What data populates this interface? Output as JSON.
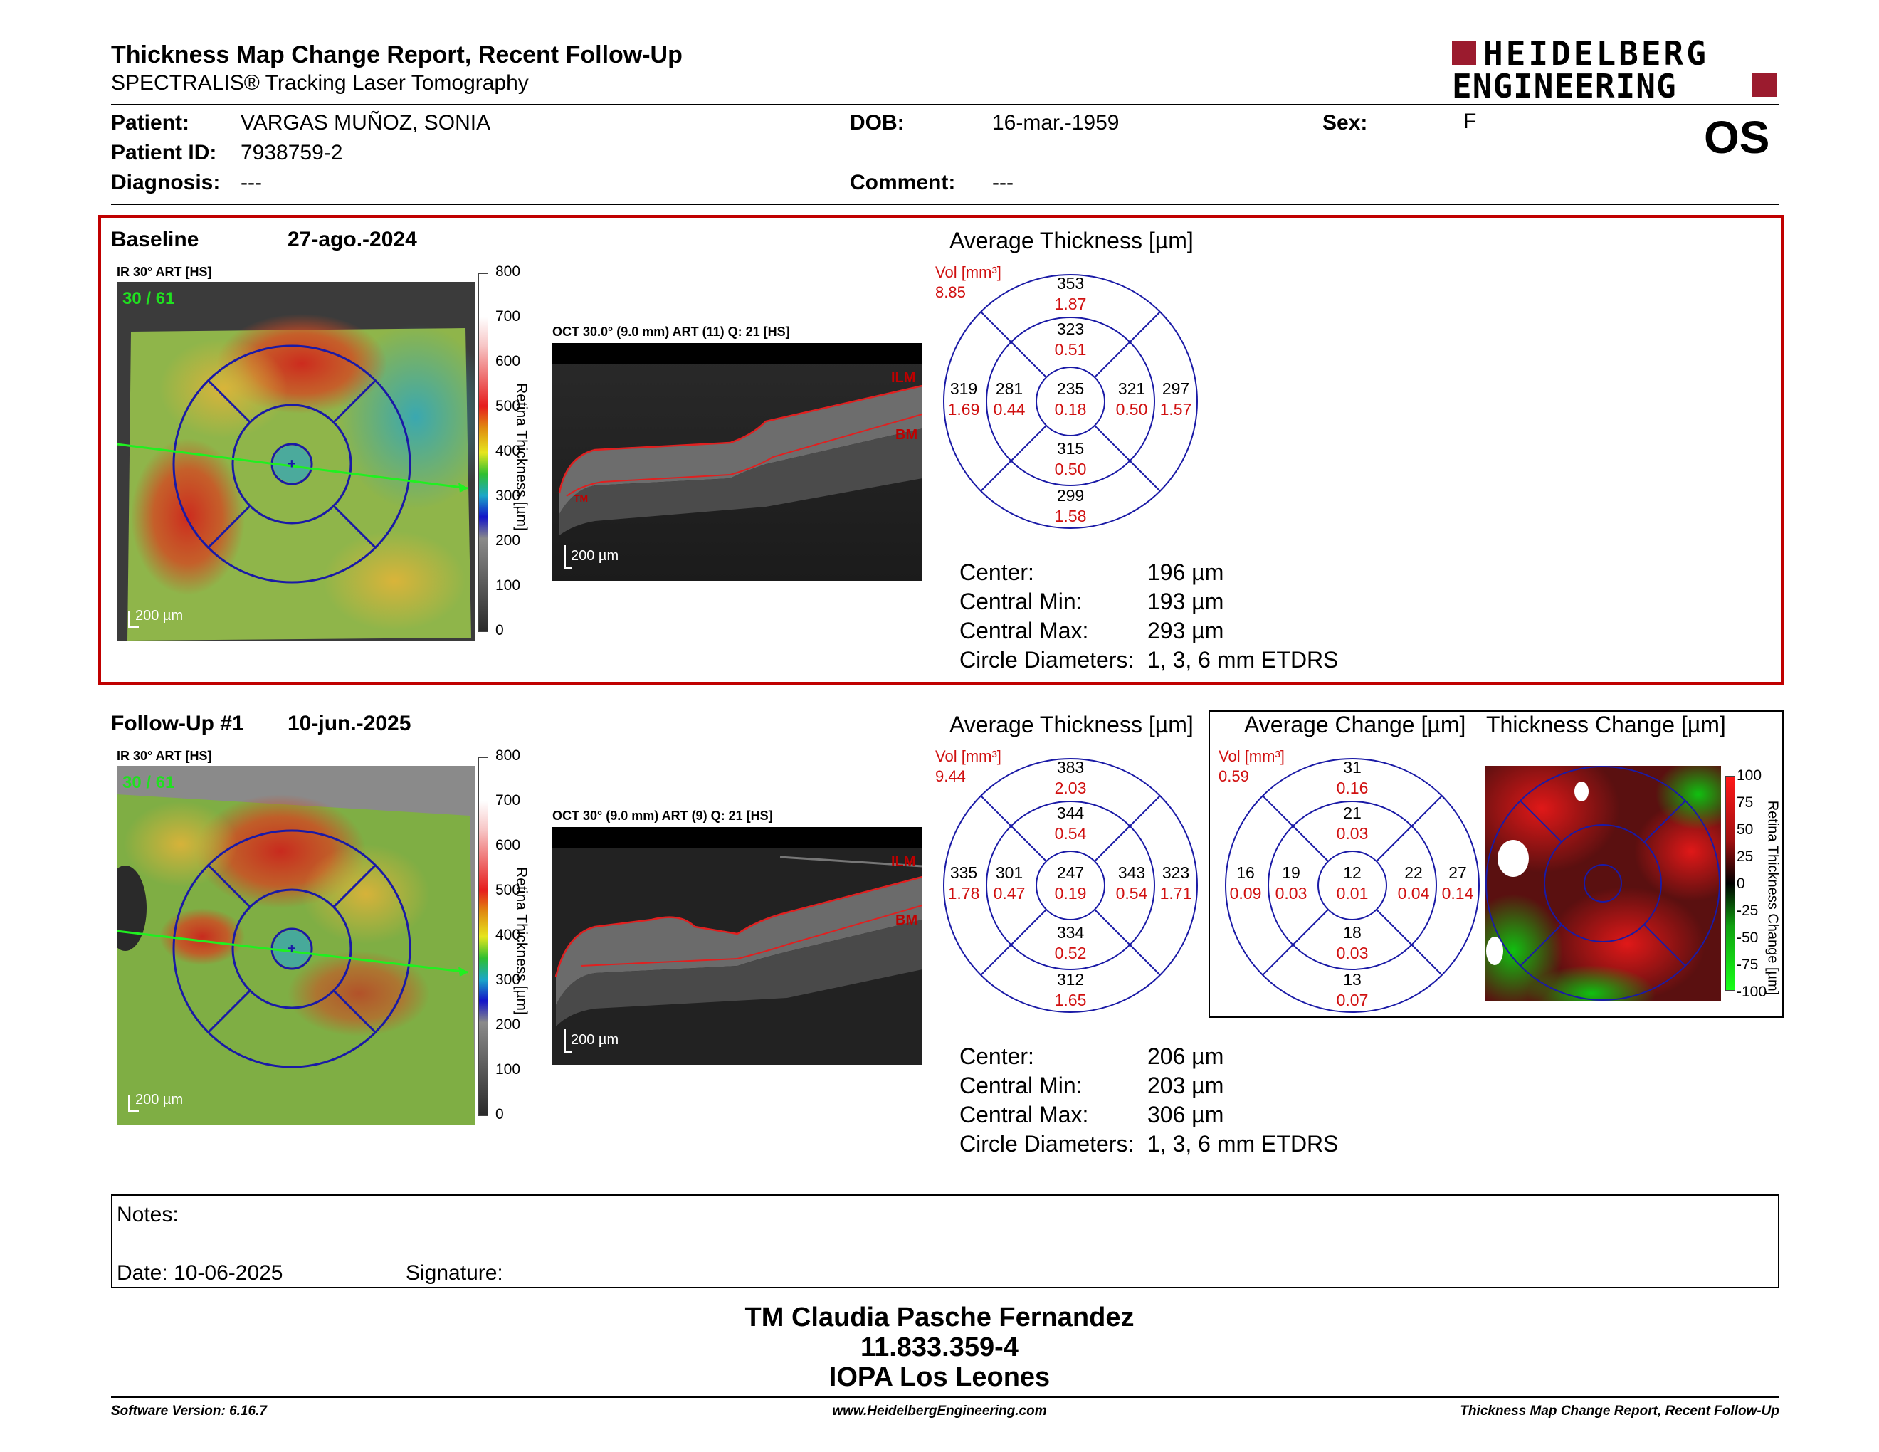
{
  "header": {
    "title": "Thickness Map Change Report, Recent Follow-Up",
    "subtitle": "SPECTRALIS® Tracking Laser Tomography",
    "logo_line1": "HEIDELBERG",
    "logo_line2": "ENGINEERING",
    "eye": "OS"
  },
  "patient": {
    "name_label": "Patient:",
    "name": "VARGAS MUÑOZ, SONIA",
    "id_label": "Patient ID:",
    "id": "7938759-2",
    "diagnosis_label": "Diagnosis:",
    "diagnosis": "---",
    "dob_label": "DOB:",
    "dob": "16-mar.-1959",
    "comment_label": "Comment:",
    "comment": "---",
    "sex_label": "Sex:",
    "sex": "F"
  },
  "baseline": {
    "label": "Baseline",
    "date": "27-ago.-2024",
    "ir_label": "IR 30° ART [HS]",
    "ir_counter": "30 / 61",
    "scale": "200 µm",
    "oct_label": "OCT 30.0° (9.0 mm) ART (11) Q: 21 [HS]",
    "oct_scale": "200 µm",
    "ilm": "ILM",
    "bm": "BM",
    "tm": "TM",
    "colorbar_title": "Retina Thickness [µm]",
    "colorbar_ticks": [
      "800",
      "700",
      "600",
      "500",
      "400",
      "300",
      "200",
      "100",
      "0"
    ],
    "avg_title": "Average Thickness [µm]",
    "vol_label": "Vol [mm³]",
    "vol_total": "8.85",
    "grid": {
      "sup_outer": [
        "353",
        "1.87"
      ],
      "sup_inner": [
        "323",
        "0.51"
      ],
      "temp_outer": [
        "319",
        "1.69"
      ],
      "temp_inner": [
        "281",
        "0.44"
      ],
      "center": [
        "235",
        "0.18"
      ],
      "nas_inner": [
        "321",
        "0.50"
      ],
      "nas_outer": [
        "297",
        "1.57"
      ],
      "inf_inner": [
        "315",
        "0.50"
      ],
      "inf_outer": [
        "299",
        "1.58"
      ]
    },
    "stats": {
      "center_label": "Center:",
      "center": "196 µm",
      "min_label": "Central Min:",
      "min": "193 µm",
      "max_label": "Central Max:",
      "max": "293 µm",
      "diam_label": "Circle Diameters:",
      "diam": "1, 3, 6 mm ETDRS"
    }
  },
  "followup": {
    "label": "Follow-Up #1",
    "date": "10-jun.-2025",
    "ir_label": "IR 30° ART [HS]",
    "ir_counter": "30 / 61",
    "scale": "200 µm",
    "oct_label": "OCT 30° (9.0 mm) ART (9) Q: 21 [HS]",
    "oct_scale": "200 µm",
    "ilm": "ILM",
    "bm": "BM",
    "colorbar_title": "Retina Thickness [µm]",
    "colorbar_ticks": [
      "800",
      "700",
      "600",
      "500",
      "400",
      "300",
      "200",
      "100",
      "0"
    ],
    "avg_title": "Average Thickness [µm]",
    "vol_label": "Vol [mm³]",
    "vol_total": "9.44",
    "grid": {
      "sup_outer": [
        "383",
        "2.03"
      ],
      "sup_inner": [
        "344",
        "0.54"
      ],
      "temp_outer": [
        "335",
        "1.78"
      ],
      "temp_inner": [
        "301",
        "0.47"
      ],
      "center": [
        "247",
        "0.19"
      ],
      "nas_inner": [
        "343",
        "0.54"
      ],
      "nas_outer": [
        "323",
        "1.71"
      ],
      "inf_inner": [
        "334",
        "0.52"
      ],
      "inf_outer": [
        "312",
        "1.65"
      ]
    },
    "change_title": "Average Change [µm]",
    "change_vol_label": "Vol [mm³]",
    "change_vol_total": "0.59",
    "change_grid": {
      "sup_outer": [
        "31",
        "0.16"
      ],
      "sup_inner": [
        "21",
        "0.03"
      ],
      "temp_outer": [
        "16",
        "0.09"
      ],
      "temp_inner": [
        "19",
        "0.03"
      ],
      "center": [
        "12",
        "0.01"
      ],
      "nas_inner": [
        "22",
        "0.04"
      ],
      "nas_outer": [
        "27",
        "0.14"
      ],
      "inf_inner": [
        "18",
        "0.03"
      ],
      "inf_outer": [
        "13",
        "0.07"
      ]
    },
    "thickness_change_title": "Thickness Change [µm]",
    "change_colorbar_title": "Retina Thickness Change [µm]",
    "change_ticks": [
      "100",
      "75",
      "50",
      "25",
      "0",
      "-25",
      "-50",
      "-75",
      "-100"
    ],
    "stats": {
      "center_label": "Center:",
      "center": "206 µm",
      "min_label": "Central Min:",
      "min": "203 µm",
      "max_label": "Central Max:",
      "max": "306 µm",
      "diam_label": "Circle Diameters:",
      "diam": "1, 3, 6 mm ETDRS"
    }
  },
  "notes": {
    "notes_label": "Notes:",
    "date_label": "Date: 10-06-2025",
    "signature_label": "Signature:"
  },
  "signature_block": {
    "line1": "TM Claudia Pasche Fernandez",
    "line2": "11.833.359-4",
    "line3": "IOPA Los Leones"
  },
  "footer": {
    "version": "Software Version: 6.16.7",
    "website": "www.HeidelbergEngineering.com",
    "report": "Thickness Map Change Report, Recent Follow-Up"
  },
  "colors": {
    "brand_red": "#9b1b2e",
    "frame_red": "#c00000",
    "grid_blue": "#1a1aa6",
    "vol_red": "#d01010"
  }
}
